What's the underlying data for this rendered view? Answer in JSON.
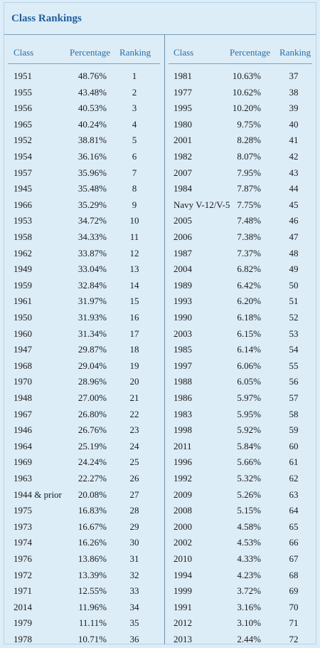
{
  "title": "Class Rankings",
  "headers": {
    "class": "Class",
    "percentage": "Percentage",
    "ranking": "Ranking"
  },
  "left_rows": [
    [
      "1951",
      "48.76%",
      "1"
    ],
    [
      "1955",
      "43.48%",
      "2"
    ],
    [
      "1956",
      "40.53%",
      "3"
    ],
    [
      "1965",
      "40.24%",
      "4"
    ],
    [
      "1952",
      "38.81%",
      "5"
    ],
    [
      "1954",
      "36.16%",
      "6"
    ],
    [
      "1957",
      "35.96%",
      "7"
    ],
    [
      "1945",
      "35.48%",
      "8"
    ],
    [
      "1966",
      "35.29%",
      "9"
    ],
    [
      "1953",
      "34.72%",
      "10"
    ],
    [
      "1958",
      "34.33%",
      "11"
    ],
    [
      "1962",
      "33.87%",
      "12"
    ],
    [
      "1949",
      "33.04%",
      "13"
    ],
    [
      "1959",
      "32.84%",
      "14"
    ],
    [
      "1961",
      "31.97%",
      "15"
    ],
    [
      "1950",
      "31.93%",
      "16"
    ],
    [
      "1960",
      "31.34%",
      "17"
    ],
    [
      "1947",
      "29.87%",
      "18"
    ],
    [
      "1968",
      "29.04%",
      "19"
    ],
    [
      "1970",
      "28.96%",
      "20"
    ],
    [
      "1948",
      "27.00%",
      "21"
    ],
    [
      "1967",
      "26.80%",
      "22"
    ],
    [
      "1946",
      "26.76%",
      "23"
    ],
    [
      "1964",
      "25.19%",
      "24"
    ],
    [
      "1969",
      "24.24%",
      "25"
    ],
    [
      "1963",
      "22.27%",
      "26"
    ],
    [
      "1944 & prior",
      "20.08%",
      "27"
    ],
    [
      "1975",
      "16.83%",
      "28"
    ],
    [
      "1973",
      "16.67%",
      "29"
    ],
    [
      "1974",
      "16.26%",
      "30"
    ],
    [
      "1976",
      "13.86%",
      "31"
    ],
    [
      "1972",
      "13.39%",
      "32"
    ],
    [
      "1971",
      "12.55%",
      "33"
    ],
    [
      "2014",
      "11.96%",
      "34"
    ],
    [
      "1979",
      "11.11%",
      "35"
    ],
    [
      "1978",
      "10.71%",
      "36"
    ]
  ],
  "right_rows": [
    [
      "1981",
      "10.63%",
      "37"
    ],
    [
      "1977",
      "10.62%",
      "38"
    ],
    [
      "1995",
      "10.20%",
      "39"
    ],
    [
      "1980",
      "9.75%",
      "40"
    ],
    [
      "2001",
      "8.28%",
      "41"
    ],
    [
      "1982",
      "8.07%",
      "42"
    ],
    [
      "2007",
      "7.95%",
      "43"
    ],
    [
      "1984",
      "7.87%",
      "44"
    ],
    [
      "Navy V-12/V-5",
      "7.75%",
      "45"
    ],
    [
      "2005",
      "7.48%",
      "46"
    ],
    [
      "2006",
      "7.38%",
      "47"
    ],
    [
      "1987",
      "7.37%",
      "48"
    ],
    [
      "2004",
      "6.82%",
      "49"
    ],
    [
      "1989",
      "6.42%",
      "50"
    ],
    [
      "1993",
      "6.20%",
      "51"
    ],
    [
      "1990",
      "6.18%",
      "52"
    ],
    [
      "2003",
      "6.15%",
      "53"
    ],
    [
      "1985",
      "6.14%",
      "54"
    ],
    [
      "1997",
      "6.06%",
      "55"
    ],
    [
      "1988",
      "6.05%",
      "56"
    ],
    [
      "1986",
      "5.97%",
      "57"
    ],
    [
      "1983",
      "5.95%",
      "58"
    ],
    [
      "1998",
      "5.92%",
      "59"
    ],
    [
      "2011",
      "5.84%",
      "60"
    ],
    [
      "1996",
      "5.66%",
      "61"
    ],
    [
      "1992",
      "5.32%",
      "62"
    ],
    [
      "2009",
      "5.26%",
      "63"
    ],
    [
      "2008",
      "5.15%",
      "64"
    ],
    [
      "2000",
      "4.58%",
      "65"
    ],
    [
      "2002",
      "4.53%",
      "66"
    ],
    [
      "2010",
      "4.33%",
      "67"
    ],
    [
      "1994",
      "4.23%",
      "68"
    ],
    [
      "1999",
      "3.72%",
      "69"
    ],
    [
      "1991",
      "3.16%",
      "70"
    ],
    [
      "2012",
      "3.10%",
      "71"
    ],
    [
      "2013",
      "2.44%",
      "72"
    ]
  ]
}
